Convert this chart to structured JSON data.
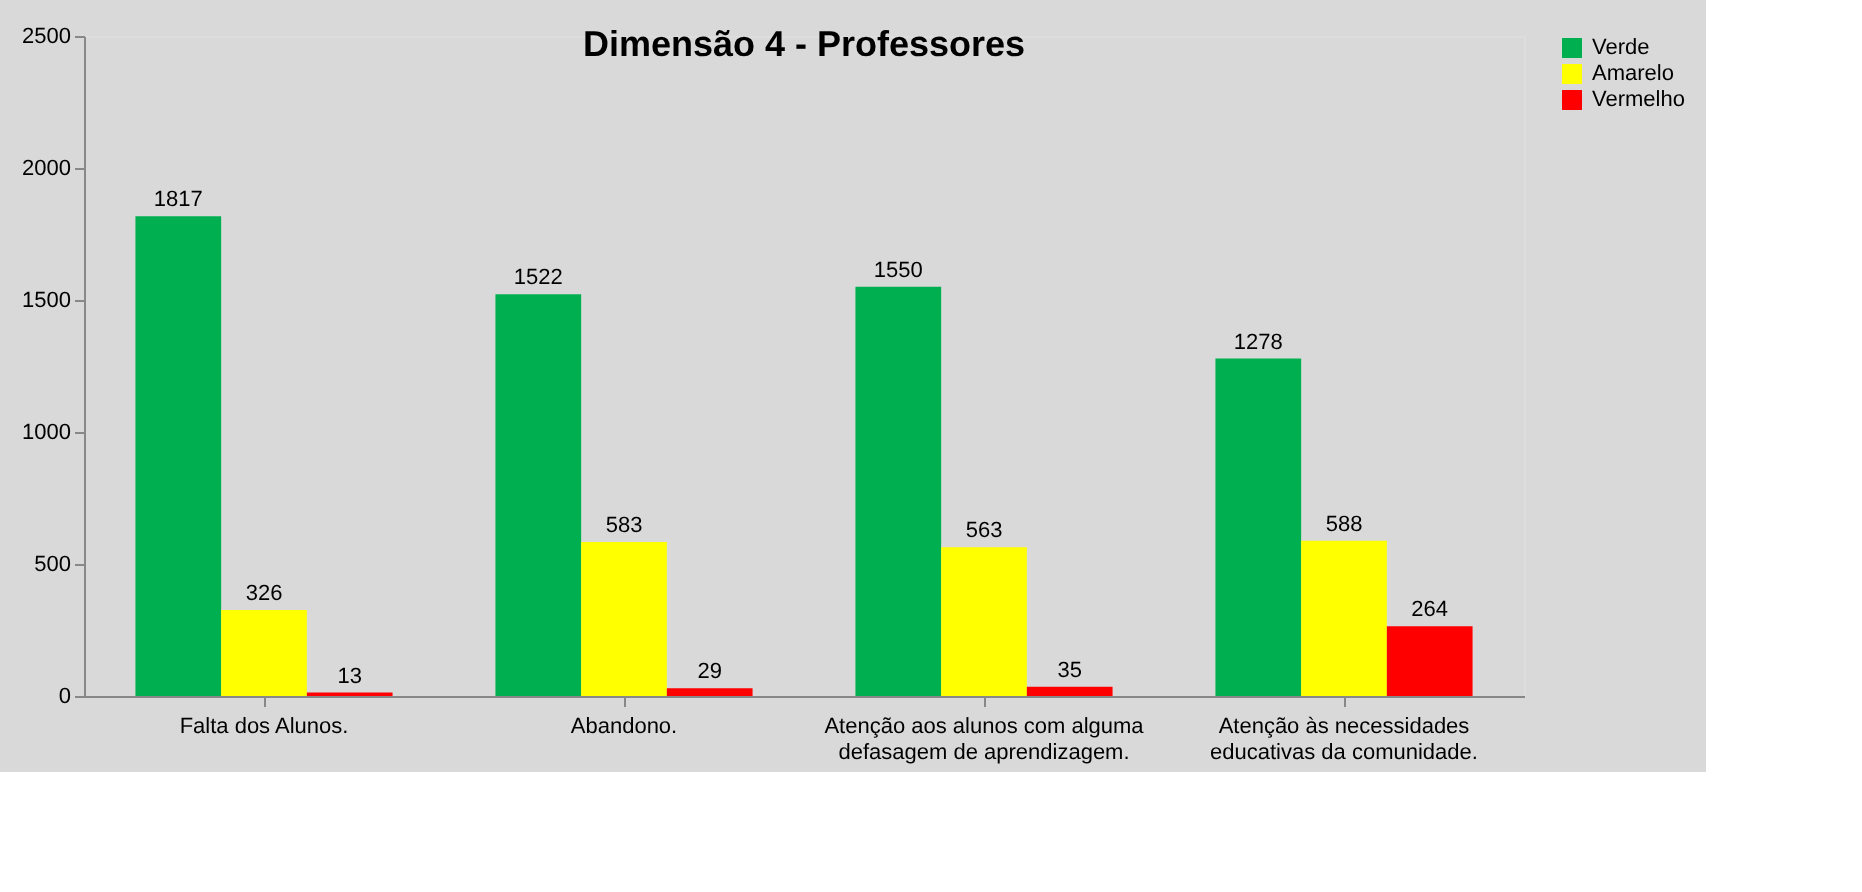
{
  "chart_data": {
    "type": "bar",
    "title": "Dimensão 4 - Professores",
    "categories": [
      "Falta dos Alunos.",
      "Abandono.",
      "Atenção aos alunos com alguma defasagem de aprendizagem.",
      "Atenção às necessidades educativas da comunidade."
    ],
    "series": [
      {
        "name": "Verde",
        "color": "#00b050",
        "values": [
          1817,
          1522,
          1550,
          1278
        ]
      },
      {
        "name": "Amarelo",
        "color": "#ffff00",
        "values": [
          326,
          583,
          563,
          588
        ]
      },
      {
        "name": "Vermelho",
        "color": "#ff0000",
        "values": [
          13,
          29,
          35,
          264
        ]
      }
    ],
    "ylim": [
      0,
      2500
    ],
    "yticks": [
      0,
      500,
      1000,
      1500,
      2000,
      2500
    ],
    "legend": "right",
    "data_labels": true
  }
}
